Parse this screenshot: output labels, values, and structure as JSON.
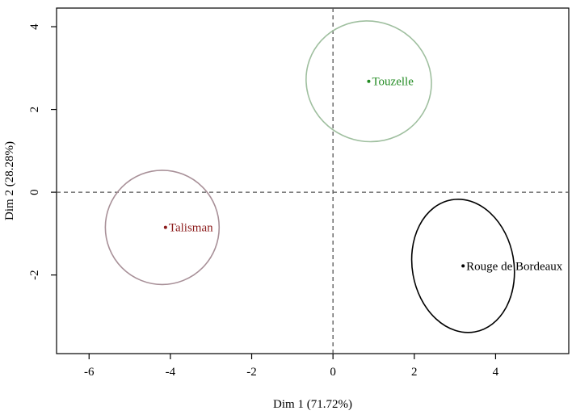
{
  "chart_data": {
    "type": "scatter",
    "title": "",
    "xlabel": "Dim 1 (71.72%)",
    "ylabel": "Dim 2 (28.28%)",
    "xlim": [
      -6.8,
      5.8
    ],
    "ylim": [
      -3.9,
      4.45
    ],
    "x_ticks": [
      -6,
      -4,
      -2,
      0,
      2,
      4
    ],
    "y_ticks": [
      -2,
      0,
      2,
      4
    ],
    "x_tick_labels": [
      "-6",
      "-4",
      "-2",
      "0",
      "2",
      "4"
    ],
    "y_tick_labels": [
      "-2",
      "0",
      "2",
      "4"
    ],
    "grid": false,
    "reference_lines": {
      "x": 0,
      "y": 0,
      "style": "dashed",
      "color": "#555555"
    },
    "points": [
      {
        "label": "Touzelle",
        "x": 0.88,
        "y": 2.68,
        "color": "#228B22",
        "ellipse": {
          "cx": 0.88,
          "cy": 2.68,
          "rx": 1.55,
          "ry": 1.45,
          "angle_deg": 20,
          "color": "#9fbf9f"
        }
      },
      {
        "label": "Talisman",
        "x": -4.12,
        "y": -0.85,
        "color": "#8B1A1A",
        "ellipse": {
          "cx": -4.2,
          "cy": -0.85,
          "rx": 1.4,
          "ry": 1.38,
          "angle_deg": 0,
          "color": "#a89098"
        }
      },
      {
        "label": "Rouge de Bordeaux",
        "x": 3.2,
        "y": -1.78,
        "color": "#000000",
        "ellipse": {
          "cx": 3.2,
          "cy": -1.78,
          "rx": 1.25,
          "ry": 1.62,
          "angle_deg": -10,
          "color": "#000000"
        }
      }
    ]
  }
}
